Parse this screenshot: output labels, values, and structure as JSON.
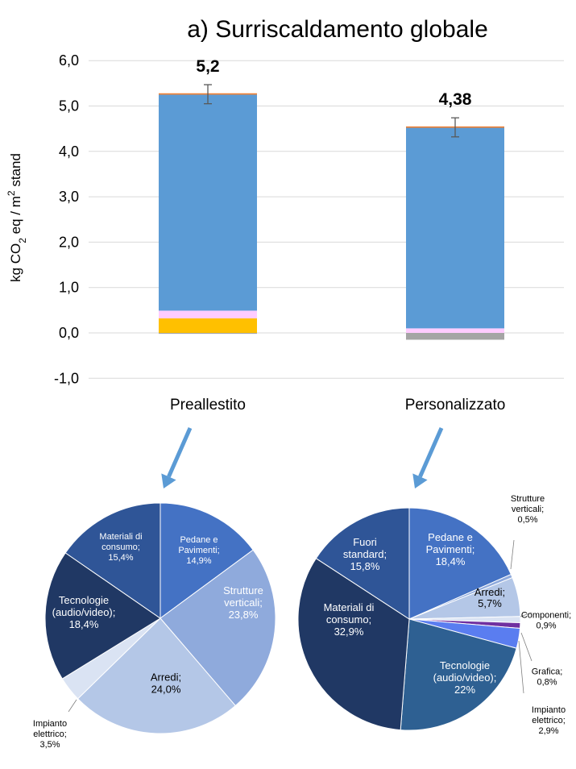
{
  "chart_data": [
    {
      "type": "bar",
      "title": "a) Surriscaldamento globale",
      "ylabel": "kg CO2 eq / m2 stand",
      "ylim": [
        -1.0,
        6.0
      ],
      "yticks": [
        "-1,0",
        "0,0",
        "1,0",
        "2,0",
        "3,0",
        "4,0",
        "5,0",
        "6,0"
      ],
      "categories": [
        "Preallestito",
        "Personalizzato"
      ],
      "totals": [
        5.2,
        4.38
      ],
      "total_labels": [
        "5,2",
        "4,38"
      ],
      "error_bars": [
        [
          5.05,
          5.47
        ],
        [
          4.32,
          4.74
        ]
      ],
      "series": [
        {
          "color": "#a5a5a5",
          "values": [
            -0.02,
            -0.15
          ]
        },
        {
          "color": "#ffc000",
          "values": [
            0.32,
            0.0
          ]
        },
        {
          "color": "#ffccff",
          "values": [
            0.17,
            0.1
          ]
        },
        {
          "color": "#5b9bd5",
          "values": [
            4.76,
            4.42
          ]
        },
        {
          "color": "#ed7d31",
          "values": [
            0.03,
            0.03
          ]
        }
      ]
    },
    {
      "type": "pie",
      "slices": [
        {
          "name": "Pedane e Pavimenti",
          "value": 14.9,
          "label": "Pedane e\nPavimenti;\n14,9%",
          "color": "#4472c4"
        },
        {
          "name": "Strutture verticali",
          "value": 23.8,
          "label": "Strutture\nverticali;\n23,8%",
          "color": "#8faadc"
        },
        {
          "name": "Arredi",
          "value": 24.0,
          "label": "Arredi;\n24,0%",
          "color": "#b4c7e7"
        },
        {
          "name": "Impianto elettrico",
          "value": 3.5,
          "label": "Impianto\nelettrico;\n3,5%",
          "color": "#dae3f3"
        },
        {
          "name": "Tecnologie (audio/video)",
          "value": 18.4,
          "label": "Tecnologie\n(audio/video);\n18,4%",
          "color": "#203864"
        },
        {
          "name": "Materiali di consumo",
          "value": 15.4,
          "label": "Materiali di\nconsumo;\n15,4%",
          "color": "#2f5597"
        }
      ]
    },
    {
      "type": "pie",
      "slices": [
        {
          "name": "Pedane e Pavimenti",
          "value": 18.4,
          "label": "Pedane e\nPavimenti;\n18,4%",
          "color": "#4472c4"
        },
        {
          "name": "Strutture verticali",
          "value": 0.5,
          "label": "Strutture\nverticali;\n0,5%",
          "color": "#8faadc"
        },
        {
          "name": "Arredi",
          "value": 5.7,
          "label": "Arredi;\n5,7%",
          "color": "#b4c7e7"
        },
        {
          "name": "Componenti",
          "value": 0.9,
          "label": "Componenti;\n0,9%",
          "color": "#dae3f3"
        },
        {
          "name": "Grafica",
          "value": 0.8,
          "label": "Grafica;\n0,8%",
          "color": "#7030a0"
        },
        {
          "name": "Impianto elettrico",
          "value": 2.9,
          "label": "Impianto\nelettrico;\n2,9%",
          "color": "#5a7df0"
        },
        {
          "name": "Tecnologie (audio/video)",
          "value": 22,
          "label": "Tecnologie\n(audio/video);\n22%",
          "color": "#2e6092"
        },
        {
          "name": "Materiali di consumo",
          "value": 32.9,
          "label": "Materiali di\nconsumo;\n32,9%",
          "color": "#203864"
        },
        {
          "name": "Fuori standard",
          "value": 15.8,
          "label": "Fuori\nstandard;\n15,8%",
          "color": "#2f5597"
        }
      ]
    }
  ],
  "arrow_color": "#5b9bd5"
}
